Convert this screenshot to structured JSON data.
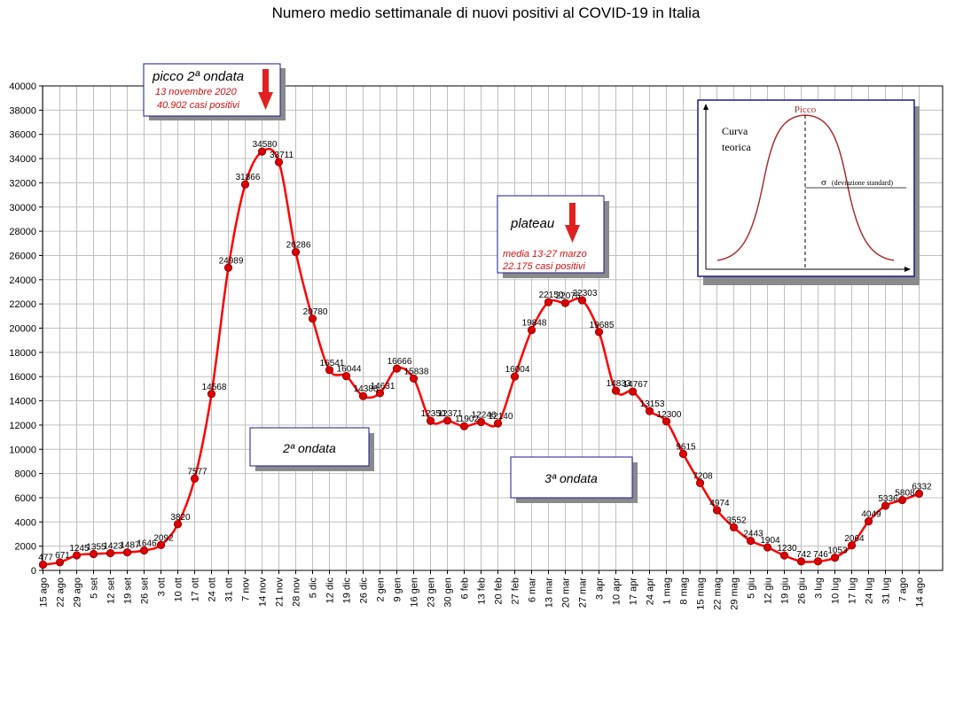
{
  "chart_data": {
    "type": "line",
    "title": "Numero medio settimanale di nuovi positivi al COVID-19 in Italia",
    "xlabel": "",
    "ylabel": "",
    "ylim": [
      0,
      40000
    ],
    "yticks": [
      0,
      2000,
      4000,
      6000,
      8000,
      10000,
      12000,
      14000,
      16000,
      18000,
      20000,
      22000,
      24000,
      26000,
      28000,
      30000,
      32000,
      34000,
      36000,
      38000,
      40000
    ],
    "grid": true,
    "categories": [
      "15 ago",
      "22 ago",
      "29 ago",
      "5 set",
      "12 set",
      "19 set",
      "26 set",
      "3 ott",
      "10 ott",
      "17 ott",
      "24 ott",
      "31 ott",
      "7 nov",
      "14 nov",
      "21 nov",
      "28 nov",
      "5 dic",
      "12 dic",
      "19 dic",
      "26 dic",
      "2 gen",
      "9 gen",
      "16 gen",
      "23 gen",
      "30 gen",
      "6 feb",
      "13 feb",
      "20 feb",
      "27 feb",
      "6 mar",
      "13 mar",
      "20 mar",
      "27 mar",
      "3 apr",
      "10 apr",
      "17 apr",
      "24 apr",
      "1 mag",
      "8 mag",
      "15 mag",
      "22 mag",
      "29 mag",
      "5 giu",
      "12 giu",
      "19 giu",
      "26 giu",
      "3 lug",
      "10 lug",
      "17 lug",
      "24 lug",
      "31 lug",
      "7 ago",
      "14 ago"
    ],
    "series": [
      {
        "values": [
          477,
          671,
          1245,
          1355,
          1423,
          1487,
          1646,
          2092,
          3820,
          7577,
          14568,
          24989,
          31866,
          34580,
          33711,
          26286,
          20780,
          16541,
          16044,
          14388,
          14631,
          16666,
          15838,
          12350,
          12371,
          11902,
          12246,
          12140,
          16004,
          19848,
          22150,
          22076,
          22303,
          19685,
          14833,
          14767,
          13153,
          12300,
          9615,
          7208,
          4974,
          3552,
          2443,
          1904,
          1230,
          742,
          746,
          1053,
          2064,
          4049,
          5336,
          5808,
          6332
        ],
        "color": "#ff0000"
      }
    ]
  },
  "annotations": {
    "peak_box": {
      "title": "picco 2ª ondata",
      "line1": "13 novembre 2020",
      "line2": "40.902 casi positivi"
    },
    "plateau_box": {
      "title": "plateau",
      "line1": "media 13-27 marzo",
      "line2": "22.175 casi positivi"
    },
    "wave2_label": "2ª ondata",
    "wave3_label": "3ª ondata"
  },
  "inset": {
    "peak_label": "Picco",
    "curve_label_line1": "Curva",
    "curve_label_line2": "teorica",
    "sigma_symbol": "σ",
    "sigma_label": "(deviazione standard)"
  },
  "colors": {
    "line": "#ff0000",
    "marker": "#dd0000",
    "annotation_text": "#d01010",
    "arrow": "#e02020",
    "box_border": "#1a1a8c",
    "box_shadow": "#8a8a8a",
    "inset_curve": "#a83030",
    "grid": "#c0c0c0"
  }
}
